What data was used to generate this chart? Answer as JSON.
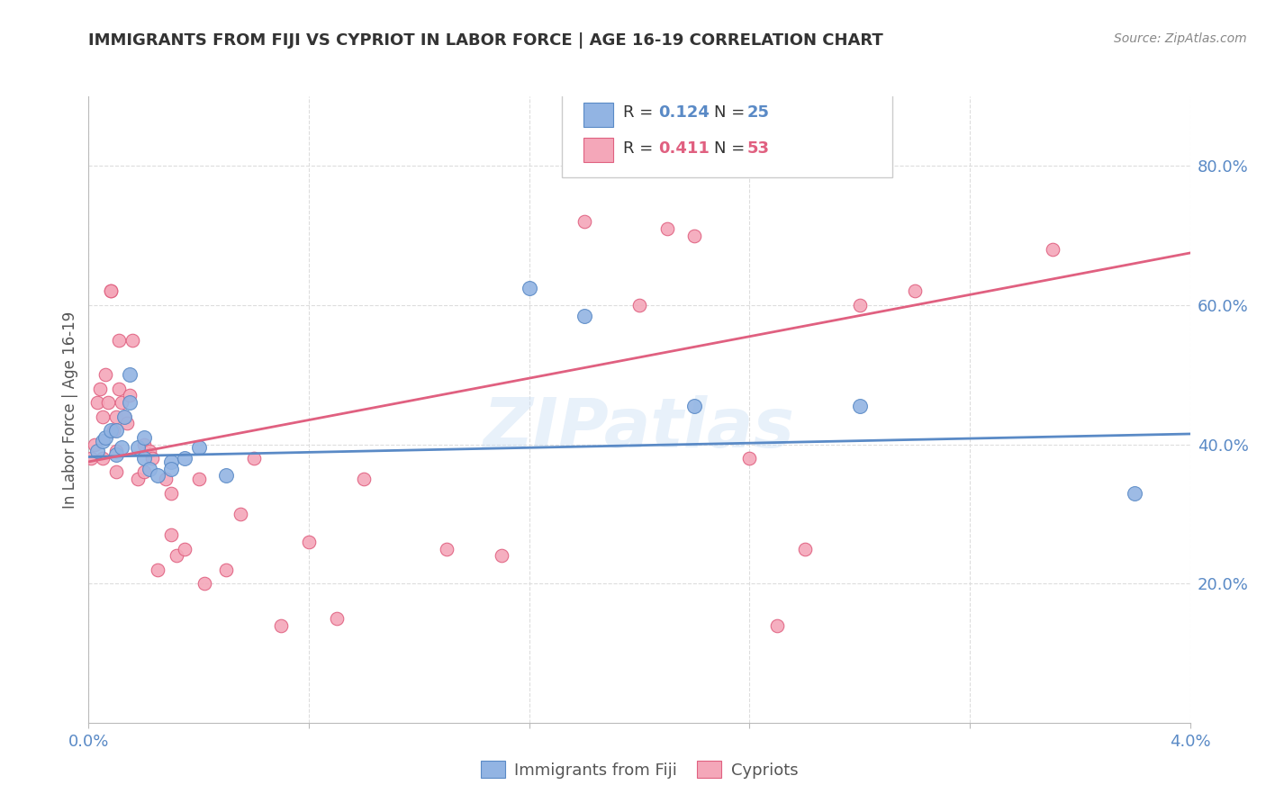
{
  "title": "IMMIGRANTS FROM FIJI VS CYPRIOT IN LABOR FORCE | AGE 16-19 CORRELATION CHART",
  "source": "Source: ZipAtlas.com",
  "ylabel": "In Labor Force | Age 16-19",
  "xlim": [
    0.0,
    0.04
  ],
  "ylim": [
    0.0,
    0.9
  ],
  "x_ticks": [
    0.0,
    0.008,
    0.016,
    0.024,
    0.032,
    0.04
  ],
  "x_tick_labels": [
    "0.0%",
    "",
    "",
    "",
    "",
    "4.0%"
  ],
  "y_ticks_right": [
    0.2,
    0.4,
    0.6,
    0.8
  ],
  "y_tick_labels_right": [
    "20.0%",
    "40.0%",
    "60.0%",
    "80.0%"
  ],
  "fiji_color": "#92b4e3",
  "fiji_edge_color": "#5a8ac6",
  "cypriot_color": "#f4a7b9",
  "cypriot_edge_color": "#e06080",
  "fiji_R": 0.124,
  "fiji_N": 25,
  "cypriot_R": 0.411,
  "cypriot_N": 53,
  "fiji_scatter_x": [
    0.0003,
    0.0005,
    0.0006,
    0.0008,
    0.001,
    0.001,
    0.0012,
    0.0013,
    0.0015,
    0.0015,
    0.0018,
    0.002,
    0.002,
    0.0022,
    0.0025,
    0.003,
    0.003,
    0.0035,
    0.004,
    0.005,
    0.016,
    0.018,
    0.022,
    0.028,
    0.038
  ],
  "fiji_scatter_y": [
    0.39,
    0.405,
    0.41,
    0.42,
    0.385,
    0.42,
    0.395,
    0.44,
    0.46,
    0.5,
    0.395,
    0.38,
    0.41,
    0.365,
    0.355,
    0.375,
    0.365,
    0.38,
    0.395,
    0.355,
    0.625,
    0.585,
    0.455,
    0.455,
    0.33
  ],
  "cypriot_scatter_x": [
    0.0001,
    0.0002,
    0.0003,
    0.0004,
    0.0005,
    0.0005,
    0.0006,
    0.0007,
    0.0008,
    0.0008,
    0.0009,
    0.001,
    0.001,
    0.001,
    0.0011,
    0.0011,
    0.0012,
    0.0013,
    0.0014,
    0.0015,
    0.0016,
    0.0018,
    0.002,
    0.002,
    0.0022,
    0.0023,
    0.0025,
    0.0028,
    0.003,
    0.003,
    0.0032,
    0.0035,
    0.004,
    0.0042,
    0.005,
    0.0055,
    0.006,
    0.007,
    0.008,
    0.009,
    0.01,
    0.013,
    0.015,
    0.018,
    0.02,
    0.021,
    0.022,
    0.024,
    0.025,
    0.026,
    0.028,
    0.03,
    0.035
  ],
  "cypriot_scatter_y": [
    0.38,
    0.4,
    0.46,
    0.48,
    0.38,
    0.44,
    0.5,
    0.46,
    0.62,
    0.62,
    0.42,
    0.36,
    0.39,
    0.44,
    0.48,
    0.55,
    0.46,
    0.44,
    0.43,
    0.47,
    0.55,
    0.35,
    0.4,
    0.36,
    0.39,
    0.38,
    0.22,
    0.35,
    0.33,
    0.27,
    0.24,
    0.25,
    0.35,
    0.2,
    0.22,
    0.3,
    0.38,
    0.14,
    0.26,
    0.15,
    0.35,
    0.25,
    0.24,
    0.72,
    0.6,
    0.71,
    0.7,
    0.38,
    0.14,
    0.25,
    0.6,
    0.62,
    0.68
  ],
  "fiji_trend_x": [
    0.0,
    0.04
  ],
  "fiji_trend_y": [
    0.382,
    0.415
  ],
  "cypriot_trend_x": [
    0.0,
    0.04
  ],
  "cypriot_trend_y": [
    0.375,
    0.675
  ],
  "watermark": "ZIPatlas",
  "background_color": "#ffffff",
  "grid_color": "#dddddd",
  "title_color": "#333333",
  "axis_label_color": "#5a8ac6",
  "cypriot_label_color": "#e06080"
}
